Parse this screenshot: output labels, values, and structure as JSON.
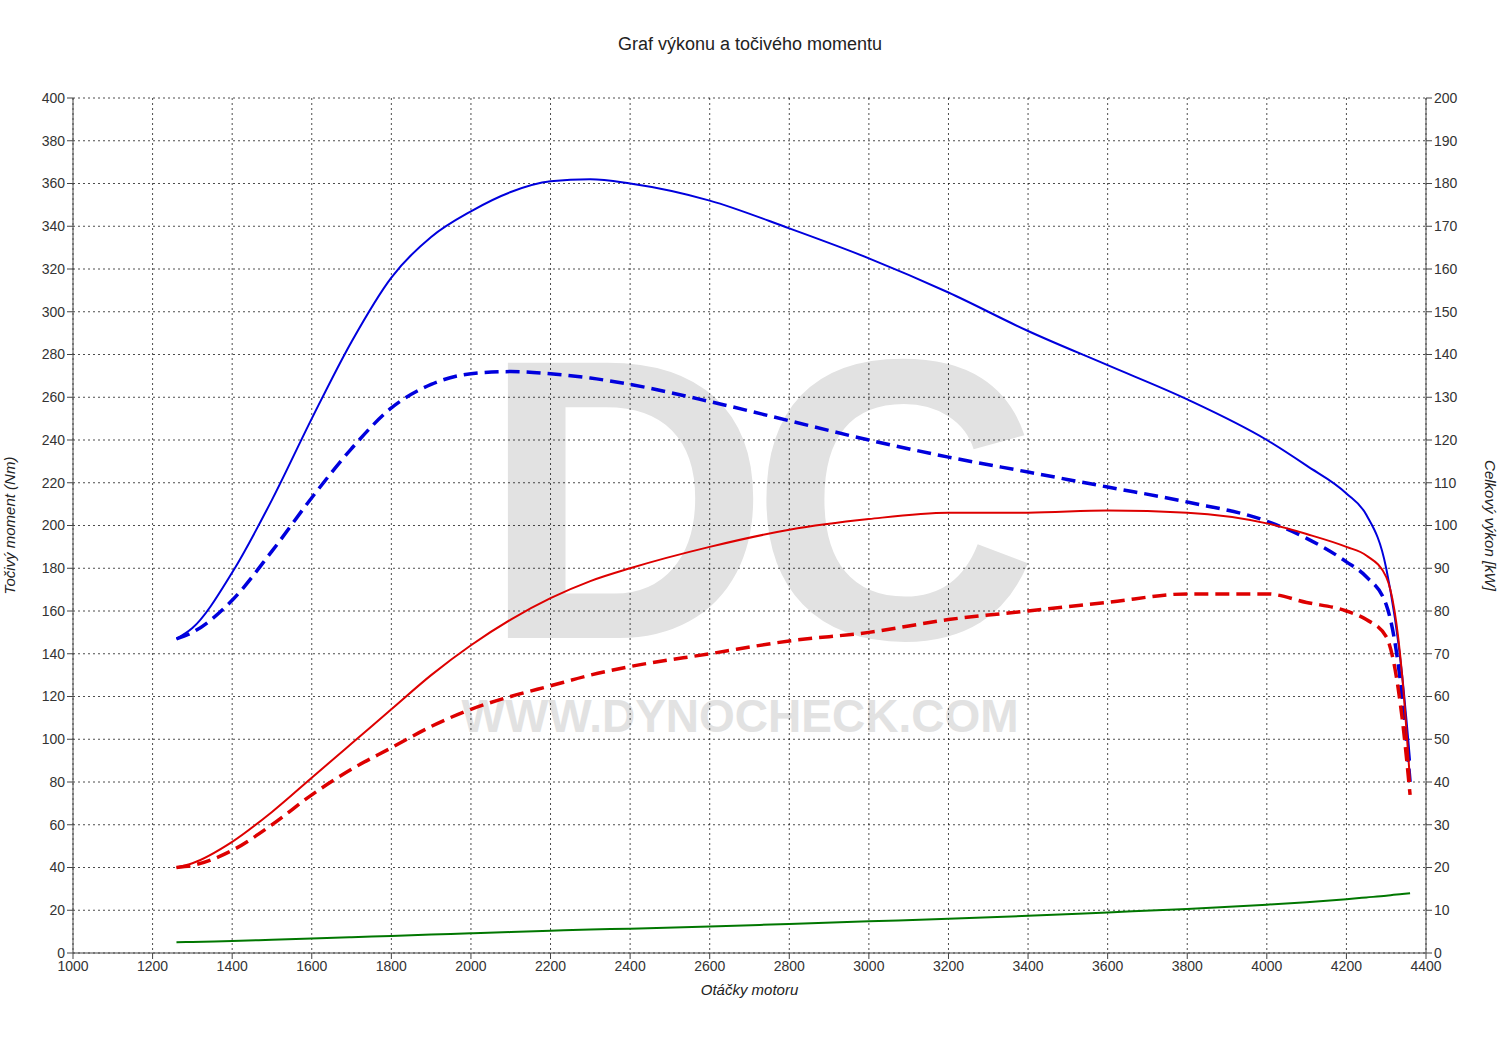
{
  "chart_data": {
    "type": "line",
    "title": "Graf výkonu a točivého momentu",
    "x_label": "Otáčky motoru",
    "y_label": "Točivý moment (Nm)",
    "y2_label": "Celkový výkon [kW]",
    "annotations": [
      "DC",
      "WWW.DYNOCHECK.COM"
    ],
    "grid": true,
    "xlim": [
      1000,
      4400
    ],
    "xticks": [
      1000,
      1200,
      1400,
      1600,
      1800,
      2000,
      2200,
      2400,
      2600,
      2800,
      3000,
      3200,
      3400,
      3600,
      3800,
      4000,
      4200,
      4400
    ],
    "ylim": [
      0,
      400
    ],
    "yticks": [
      0,
      20,
      40,
      60,
      80,
      100,
      120,
      140,
      160,
      180,
      200,
      220,
      240,
      260,
      280,
      300,
      320,
      340,
      360,
      380,
      400
    ],
    "y2lim": [
      0,
      200
    ],
    "y2ticks": [
      0,
      10,
      20,
      30,
      40,
      50,
      60,
      70,
      80,
      90,
      100,
      110,
      120,
      130,
      140,
      150,
      160,
      170,
      180,
      190,
      200
    ],
    "x": [
      1260,
      1300,
      1400,
      1500,
      1600,
      1700,
      1800,
      1900,
      2000,
      2100,
      2200,
      2300,
      2400,
      2600,
      2800,
      3000,
      3200,
      3400,
      3600,
      3800,
      4000,
      4100,
      4200,
      4250,
      4300,
      4340,
      4360
    ],
    "series": [
      {
        "color": "#0000dd",
        "line_style": "solid",
        "axis": "y",
        "values": [
          147,
          152,
          178,
          212,
          250,
          286,
          316,
          335,
          347,
          356,
          361,
          362,
          360,
          352,
          339,
          325,
          309,
          291,
          275,
          259,
          240,
          228,
          215,
          205,
          180,
          130,
          90
        ]
      },
      {
        "color": "#0000dd",
        "line_style": "dashed",
        "axis": "y",
        "values": [
          147,
          150,
          165,
          188,
          213,
          236,
          255,
          266,
          271,
          272,
          271,
          269,
          266,
          258,
          249,
          240,
          232,
          225,
          218,
          211,
          202,
          194,
          183,
          176,
          163,
          120,
          80
        ]
      },
      {
        "color": "#dd0000",
        "line_style": "solid",
        "axis": "y2",
        "values": [
          20,
          21,
          26,
          33,
          41,
          49,
          57,
          65,
          72,
          78,
          83,
          87,
          90,
          95,
          99,
          101.5,
          103,
          103,
          103.5,
          103,
          100.5,
          98,
          95,
          93,
          88,
          65,
          40
        ]
      },
      {
        "color": "#dd0000",
        "line_style": "dashed",
        "axis": "y2",
        "values": [
          20,
          20.5,
          24,
          30,
          37,
          43,
          48,
          53,
          57,
          60,
          62.5,
          65,
          67,
          70,
          73,
          75,
          78,
          80,
          82,
          84,
          84,
          82,
          80,
          78,
          74,
          55,
          37
        ]
      },
      {
        "color": "#007700",
        "line_style": "solid",
        "axis": "y2",
        "values": [
          2.5,
          2.6,
          2.8,
          3.1,
          3.4,
          3.7,
          4.0,
          4.3,
          4.6,
          4.9,
          5.2,
          5.5,
          5.7,
          6.2,
          6.8,
          7.4,
          8.0,
          8.7,
          9.5,
          10.3,
          11.3,
          11.9,
          12.6,
          13.0,
          13.4,
          13.8,
          14.0
        ]
      }
    ]
  }
}
